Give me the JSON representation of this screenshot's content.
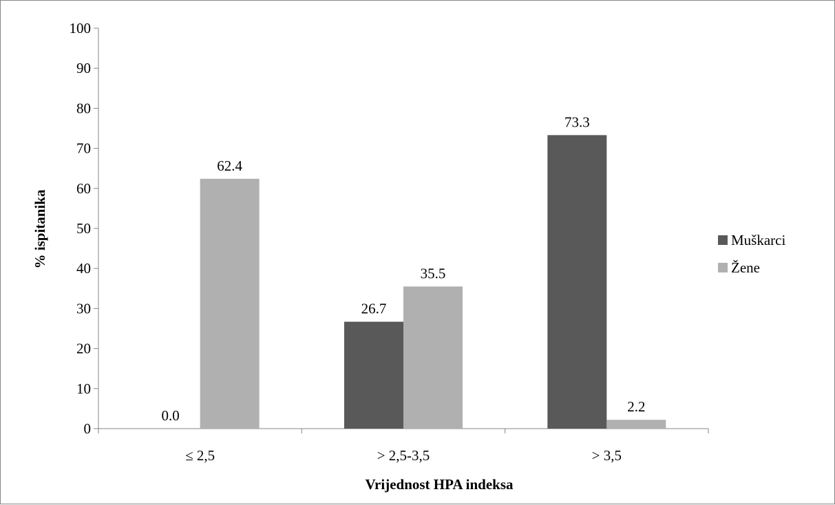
{
  "chart_data": {
    "type": "bar",
    "categories": [
      "≤ 2,5",
      "> 2,5-3,5",
      "> 3,5"
    ],
    "series": [
      {
        "name": "Muškarci",
        "values": [
          0.0,
          26.7,
          73.3
        ],
        "color": "#595959"
      },
      {
        "name": "Žene",
        "values": [
          62.4,
          35.5,
          2.2
        ],
        "color": "#b0b0b0"
      }
    ],
    "data_labels": [
      [
        "0.0",
        "26.7",
        "73.3"
      ],
      [
        "62.4",
        "35.5",
        "2.2"
      ]
    ],
    "title": "",
    "xlabel": "Vrijednost HPA indeksa",
    "ylabel": "% ispitanika",
    "ylim": [
      0,
      100
    ],
    "yticks": [
      "0",
      "10",
      "20",
      "30",
      "40",
      "50",
      "60",
      "70",
      "80",
      "90",
      "100"
    ],
    "grid": false,
    "legend_position": "right"
  }
}
